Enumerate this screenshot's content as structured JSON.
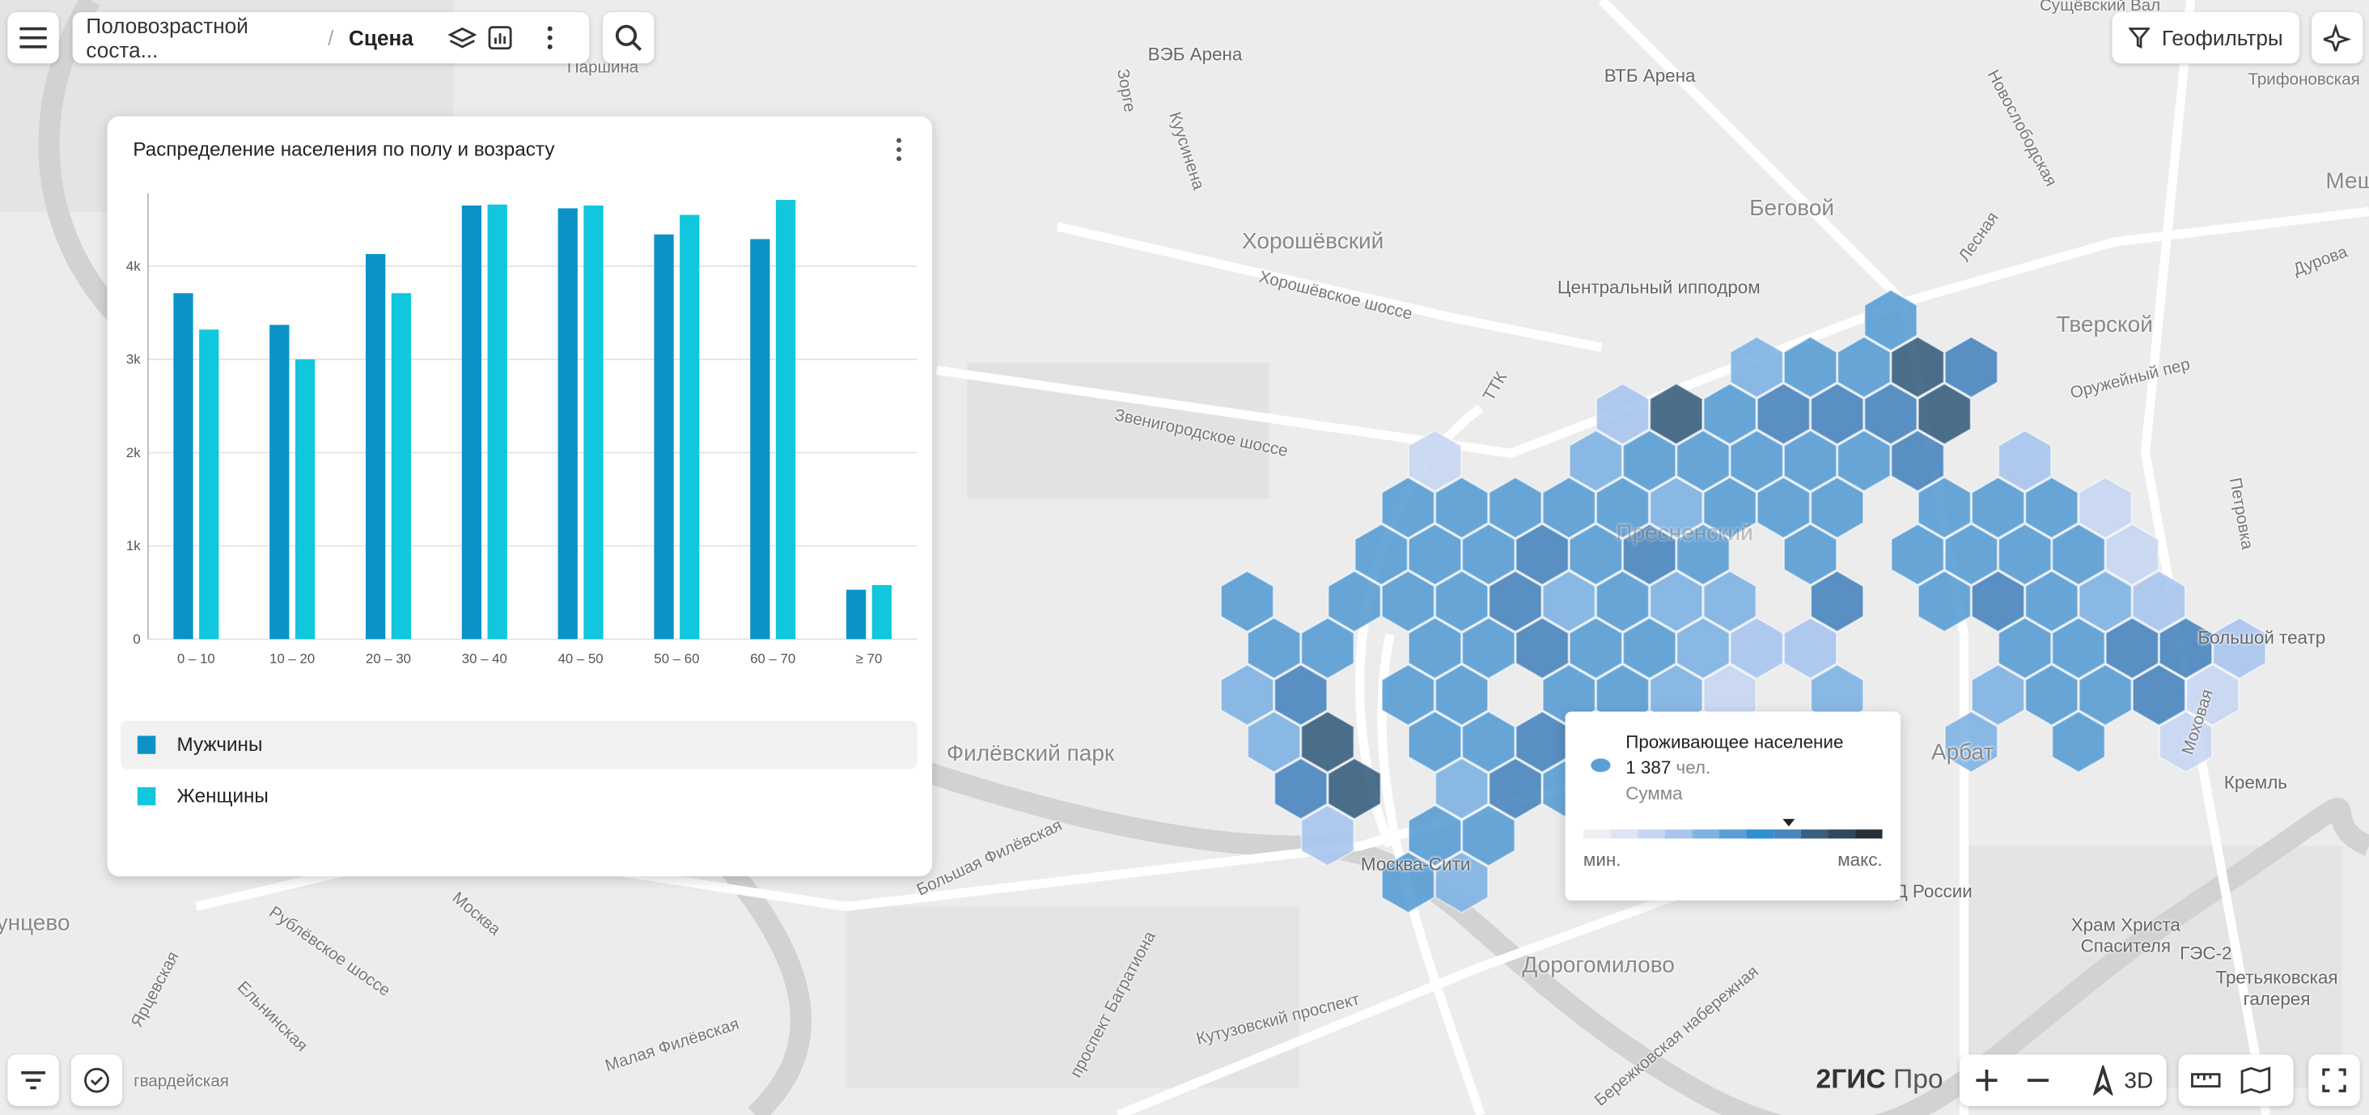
{
  "toolbar": {
    "breadcrumb": "Половозрастной соста...",
    "separator": "/",
    "scene": "Сцена",
    "geofilters": "Геофильтры"
  },
  "chart_data": {
    "type": "bar",
    "title": "Распределение населения по полу и возрасту",
    "categories": [
      "0 – 10",
      "10 – 20",
      "20 – 30",
      "30 – 40",
      "40 – 50",
      "50 – 60",
      "60 – 70",
      "≥ 70"
    ],
    "series": [
      {
        "name": "Мужчины",
        "color": "#0b93c8",
        "values": [
          3710,
          3370,
          4130,
          4650,
          4620,
          4340,
          4290,
          530
        ]
      },
      {
        "name": "Женщины",
        "color": "#10c7de",
        "values": [
          3320,
          3000,
          3710,
          4660,
          4650,
          4550,
          4710,
          580
        ]
      }
    ],
    "ylim": [
      0,
      4780
    ],
    "yticks": [
      0,
      {
        "value": 1000,
        "label": "1k"
      },
      {
        "value": 2000,
        "label": "2k"
      },
      {
        "value": 3000,
        "label": "3k"
      },
      {
        "value": 4000,
        "label": "4k"
      }
    ],
    "grid": true
  },
  "tooltip": {
    "title": "Проживающее население",
    "value": "1 387",
    "unit": "чел.",
    "aggregation": "Сумма",
    "min": "мин.",
    "max": "макс."
  },
  "brand": {
    "name": "2ГИС",
    "product": "Про"
  },
  "map_controls": {
    "three_d": "3D"
  },
  "map": {
    "labels": [
      "ВЭБ Арена",
      "ВТБ Арена",
      "Беговой",
      "Хорошёвский",
      "Центральный ипподром",
      "Тверской",
      "Пресненский",
      "Филёвский парк",
      "Арбат",
      "Москва-Сити",
      "Дорогомилово",
      "Большой театр",
      "Кремль",
      "Храм Христа",
      "Спасителя",
      "ГЭС-2",
      "Третьяковская",
      "галерея",
      "Д России",
      "Сущёвский Вал",
      "Трифоновская",
      "Паршина",
      "Хорошёвское шоссе",
      "Звенигородское шоссе",
      "Кутузовский проспект",
      "Рублёвское шоссе",
      "Большая Филёвская",
      "Малая Филёвская",
      "Москва",
      "Оружейный пер",
      "Новослободская",
      "Петровка",
      "Моховая",
      "Дурова",
      "Лесная",
      "проспект Багратиона",
      "Бережковская набережная",
      "Ельнинская",
      "Ярцевская",
      "Куусинена",
      "Зорге",
      "Мещ",
      "ТТК",
      "унцево",
      "гвардейская"
    ]
  }
}
